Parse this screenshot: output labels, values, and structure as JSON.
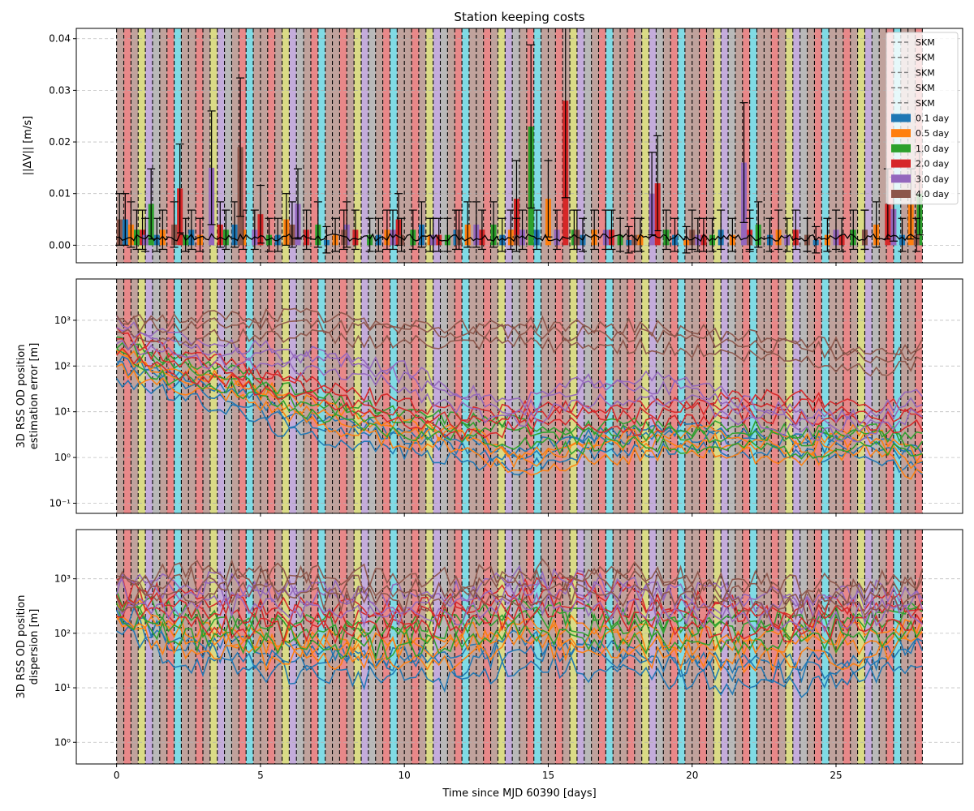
{
  "figure": {
    "title": "Station keeping costs",
    "xlabel": "Time since MJD 60390 [days]"
  },
  "chart_data": [
    {
      "type": "bar",
      "title": "Station keeping costs",
      "ylabel": "||ΔV|| [m/s]",
      "xlabel": "",
      "xlim": [
        -1.4,
        29.4
      ],
      "ylim": [
        -0.0034,
        0.042
      ],
      "yticks": [
        0.0,
        0.01,
        0.02,
        0.03,
        0.04
      ],
      "ytick_labels": [
        "0.00",
        "0.01",
        "0.02",
        "0.03",
        "0.04"
      ],
      "grid": true,
      "legend": {
        "placement": "top-right",
        "entries": [
          {
            "label": "SKM",
            "kind": "dashed-line",
            "color": "#7f7f7f"
          },
          {
            "label": "SKM",
            "kind": "dashed-line",
            "color": "#7f7f7f"
          },
          {
            "label": "SKM",
            "kind": "dashed-line",
            "color": "#7f7f7f"
          },
          {
            "label": "SKM",
            "kind": "dashed-line",
            "color": "#7f7f7f"
          },
          {
            "label": "SKM",
            "kind": "dashed-line",
            "color": "#7f7f7f"
          },
          {
            "label": "0.1 day",
            "kind": "patch",
            "color": "#1f77b4"
          },
          {
            "label": "0.5 day",
            "kind": "patch",
            "color": "#ff7f0e"
          },
          {
            "label": "1.0 day",
            "kind": "patch",
            "color": "#2ca02c"
          },
          {
            "label": "2.0 day",
            "kind": "patch",
            "color": "#d62728"
          },
          {
            "label": "3.0 day",
            "kind": "patch",
            "color": "#9467bd"
          },
          {
            "label": "4.0 day",
            "kind": "patch",
            "color": "#8c564b"
          }
        ]
      },
      "series": [
        {
          "name": "0.1 day",
          "color": "#1f77b4",
          "x": [
            0.3,
            1.4,
            2.6,
            4.1,
            5.6,
            7.3,
            9.1,
            10.6,
            11.8,
            13.4,
            14.6,
            16.2,
            17.8,
            19.4,
            21.0,
            22.7,
            24.3,
            26.0,
            27.3
          ],
          "values": [
            0.005,
            0.002,
            0.003,
            0.004,
            0.002,
            0.001,
            0.002,
            0.004,
            0.003,
            0.002,
            0.003,
            0.002,
            0.001,
            0.002,
            0.003,
            0.002,
            0.001,
            0.003,
            0.002
          ]
        },
        {
          "name": "0.5 day",
          "color": "#ff7f0e",
          "x": [
            0.5,
            1.6,
            2.9,
            4.4,
            5.9,
            7.6,
            9.4,
            10.9,
            12.2,
            13.7,
            15.0,
            16.6,
            18.2,
            19.8,
            21.4,
            23.0,
            24.7,
            26.4,
            27.6
          ],
          "values": [
            0.004,
            0.003,
            0.002,
            0.003,
            0.005,
            0.002,
            0.003,
            0.002,
            0.004,
            0.003,
            0.009,
            0.003,
            0.002,
            0.001,
            0.002,
            0.003,
            0.002,
            0.004,
            0.008
          ]
        },
        {
          "name": "1.0 day",
          "color": "#2ca02c",
          "x": [
            0.7,
            1.2,
            2.4,
            3.8,
            5.3,
            7.0,
            8.8,
            10.3,
            11.5,
            13.1,
            14.4,
            15.9,
            17.5,
            19.1,
            20.7,
            22.3,
            24.0,
            25.6,
            27.9
          ],
          "values": [
            0.003,
            0.008,
            0.002,
            0.003,
            0.002,
            0.004,
            0.002,
            0.003,
            0.002,
            0.004,
            0.023,
            0.003,
            0.002,
            0.003,
            0.002,
            0.004,
            0.002,
            0.003,
            0.01
          ]
        },
        {
          "name": "2.0 day",
          "color": "#d62728",
          "x": [
            0.9,
            2.2,
            3.6,
            5.0,
            6.6,
            8.3,
            9.8,
            11.2,
            12.7,
            13.9,
            15.6,
            17.2,
            18.8,
            20.4,
            22.0,
            23.6,
            25.2,
            26.8
          ],
          "values": [
            0.003,
            0.011,
            0.004,
            0.006,
            0.003,
            0.003,
            0.005,
            0.002,
            0.003,
            0.009,
            0.028,
            0.003,
            0.012,
            0.002,
            0.003,
            0.003,
            0.002,
            0.008
          ]
        },
        {
          "name": "3.0 day",
          "color": "#9467bd",
          "x": [
            1.0,
            3.3,
            4.8,
            6.3,
            8.0,
            9.6,
            11.0,
            12.5,
            14.1,
            15.3,
            17.0,
            18.6,
            20.2,
            21.8,
            23.3,
            25.0,
            27.0
          ],
          "values": [
            0.002,
            0.015,
            0.003,
            0.008,
            0.004,
            0.003,
            0.002,
            0.004,
            0.003,
            0.003,
            0.003,
            0.01,
            0.002,
            0.016,
            0.002,
            0.003,
            0.007
          ]
        },
        {
          "name": "4.0 day",
          "color": "#8c564b",
          "x": [
            0.1,
            2.0,
            4.3,
            6.1,
            7.9,
            9.9,
            11.9,
            13.9,
            16.0,
            18.0,
            20.0,
            22.0,
            24.0,
            26.0,
            27.8
          ],
          "values": [
            0.005,
            0.004,
            0.019,
            0.004,
            0.003,
            0.002,
            0.003,
            0.002,
            0.003,
            0.002,
            0.003,
            0.002,
            0.002,
            0.003,
            0.002
          ]
        }
      ]
    },
    {
      "type": "line",
      "ylabel": "3D RSS OD position\nestimation error [m]",
      "xlabel": "",
      "yscale": "log",
      "xlim": [
        -1.4,
        29.4
      ],
      "ylim": [
        0.06,
        8000
      ],
      "yticks": [
        0.1,
        1,
        10,
        100,
        1000
      ],
      "ytick_labels": [
        "10⁻¹",
        "10⁰",
        "10¹",
        "10²",
        "10³"
      ],
      "grid": true,
      "x": [
        0,
        2,
        4,
        6,
        8,
        10,
        12,
        14,
        16,
        18,
        20,
        22,
        24,
        26,
        28
      ],
      "series": [
        {
          "name": "0.1 day",
          "color": "#1f77b4",
          "values": [
            100,
            40,
            20,
            6,
            4,
            2.5,
            1.5,
            1.0,
            2.0,
            2.5,
            3.0,
            2.5,
            2.0,
            1.5,
            1.0
          ]
        },
        {
          "name": "0.5 day",
          "color": "#ff7f0e",
          "values": [
            150,
            60,
            40,
            15,
            6,
            4,
            3,
            0.8,
            1.5,
            2.0,
            2.5,
            2.0,
            1.5,
            3.0,
            0.6
          ]
        },
        {
          "name": "1.0 day",
          "color": "#2ca02c",
          "values": [
            300,
            90,
            60,
            20,
            10,
            6,
            5,
            4,
            3,
            3.5,
            3.0,
            3.0,
            2.5,
            3.0,
            2.0
          ]
        },
        {
          "name": "2.0 day",
          "color": "#d62728",
          "values": [
            400,
            120,
            80,
            40,
            20,
            10,
            6,
            8,
            10,
            8,
            12,
            15,
            14,
            10,
            8
          ]
        },
        {
          "name": "3.0 day",
          "color": "#9467bd",
          "values": [
            600,
            300,
            200,
            150,
            120,
            60,
            20,
            10,
            30,
            40,
            30,
            10,
            6,
            5,
            20
          ]
        },
        {
          "name": "4.0 day",
          "color": "#8c564b",
          "values": [
            900,
            700,
            800,
            900,
            700,
            600,
            500,
            600,
            500,
            500,
            400,
            300,
            250,
            150,
            200
          ]
        }
      ]
    },
    {
      "type": "line",
      "ylabel": "3D RSS OD position\ndispersion [m]",
      "xlabel": "Time since MJD 60390 [days]",
      "yscale": "log",
      "xlim": [
        -1.4,
        29.4
      ],
      "ylim": [
        0.4,
        8000
      ],
      "yticks": [
        1,
        10,
        100,
        1000
      ],
      "ytick_labels": [
        "10⁰",
        "10¹",
        "10²",
        "10³"
      ],
      "xticks": [
        0,
        5,
        10,
        15,
        20,
        25
      ],
      "xtick_labels": [
        "0",
        "5",
        "10",
        "15",
        "20",
        "25"
      ],
      "grid": true,
      "x": [
        0,
        2,
        4,
        6,
        8,
        10,
        12,
        14,
        16,
        18,
        20,
        22,
        24,
        26,
        28
      ],
      "series": [
        {
          "name": "0.1 day",
          "color": "#1f77b4",
          "values": [
            200,
            60,
            40,
            35,
            30,
            28,
            25,
            50,
            40,
            30,
            25,
            20,
            20,
            25,
            60
          ]
        },
        {
          "name": "0.5 day",
          "color": "#ff7f0e",
          "values": [
            300,
            100,
            70,
            60,
            55,
            50,
            60,
            120,
            90,
            70,
            60,
            55,
            60,
            70,
            120
          ]
        },
        {
          "name": "1.0 day",
          "color": "#2ca02c",
          "values": [
            400,
            150,
            120,
            110,
            100,
            100,
            120,
            200,
            150,
            130,
            120,
            110,
            120,
            150,
            200
          ]
        },
        {
          "name": "2.0 day",
          "color": "#d62728",
          "values": [
            500,
            300,
            250,
            200,
            200,
            200,
            250,
            400,
            600,
            300,
            250,
            200,
            200,
            250,
            300
          ]
        },
        {
          "name": "3.0 day",
          "color": "#9467bd",
          "values": [
            600,
            500,
            600,
            500,
            400,
            350,
            400,
            700,
            600,
            500,
            400,
            350,
            300,
            400,
            400
          ]
        },
        {
          "name": "4.0 day",
          "color": "#8c564b",
          "values": [
            700,
            900,
            1000,
            900,
            800,
            700,
            700,
            900,
            1000,
            900,
            700,
            600,
            500,
            600,
            700
          ]
        }
      ]
    }
  ],
  "skm_markers": {
    "color_dashed": "#000000",
    "shade_colors": [
      "#8c564b",
      "#d62728",
      "#8c564b",
      "#bcbd22",
      "#9467bd",
      "#7f7f7f",
      "#8c564b",
      "#d62728",
      "#17becf",
      "#8c564b"
    ],
    "start_day": 0.0,
    "end_day": 28.0,
    "spacing_days": 0.25
  }
}
